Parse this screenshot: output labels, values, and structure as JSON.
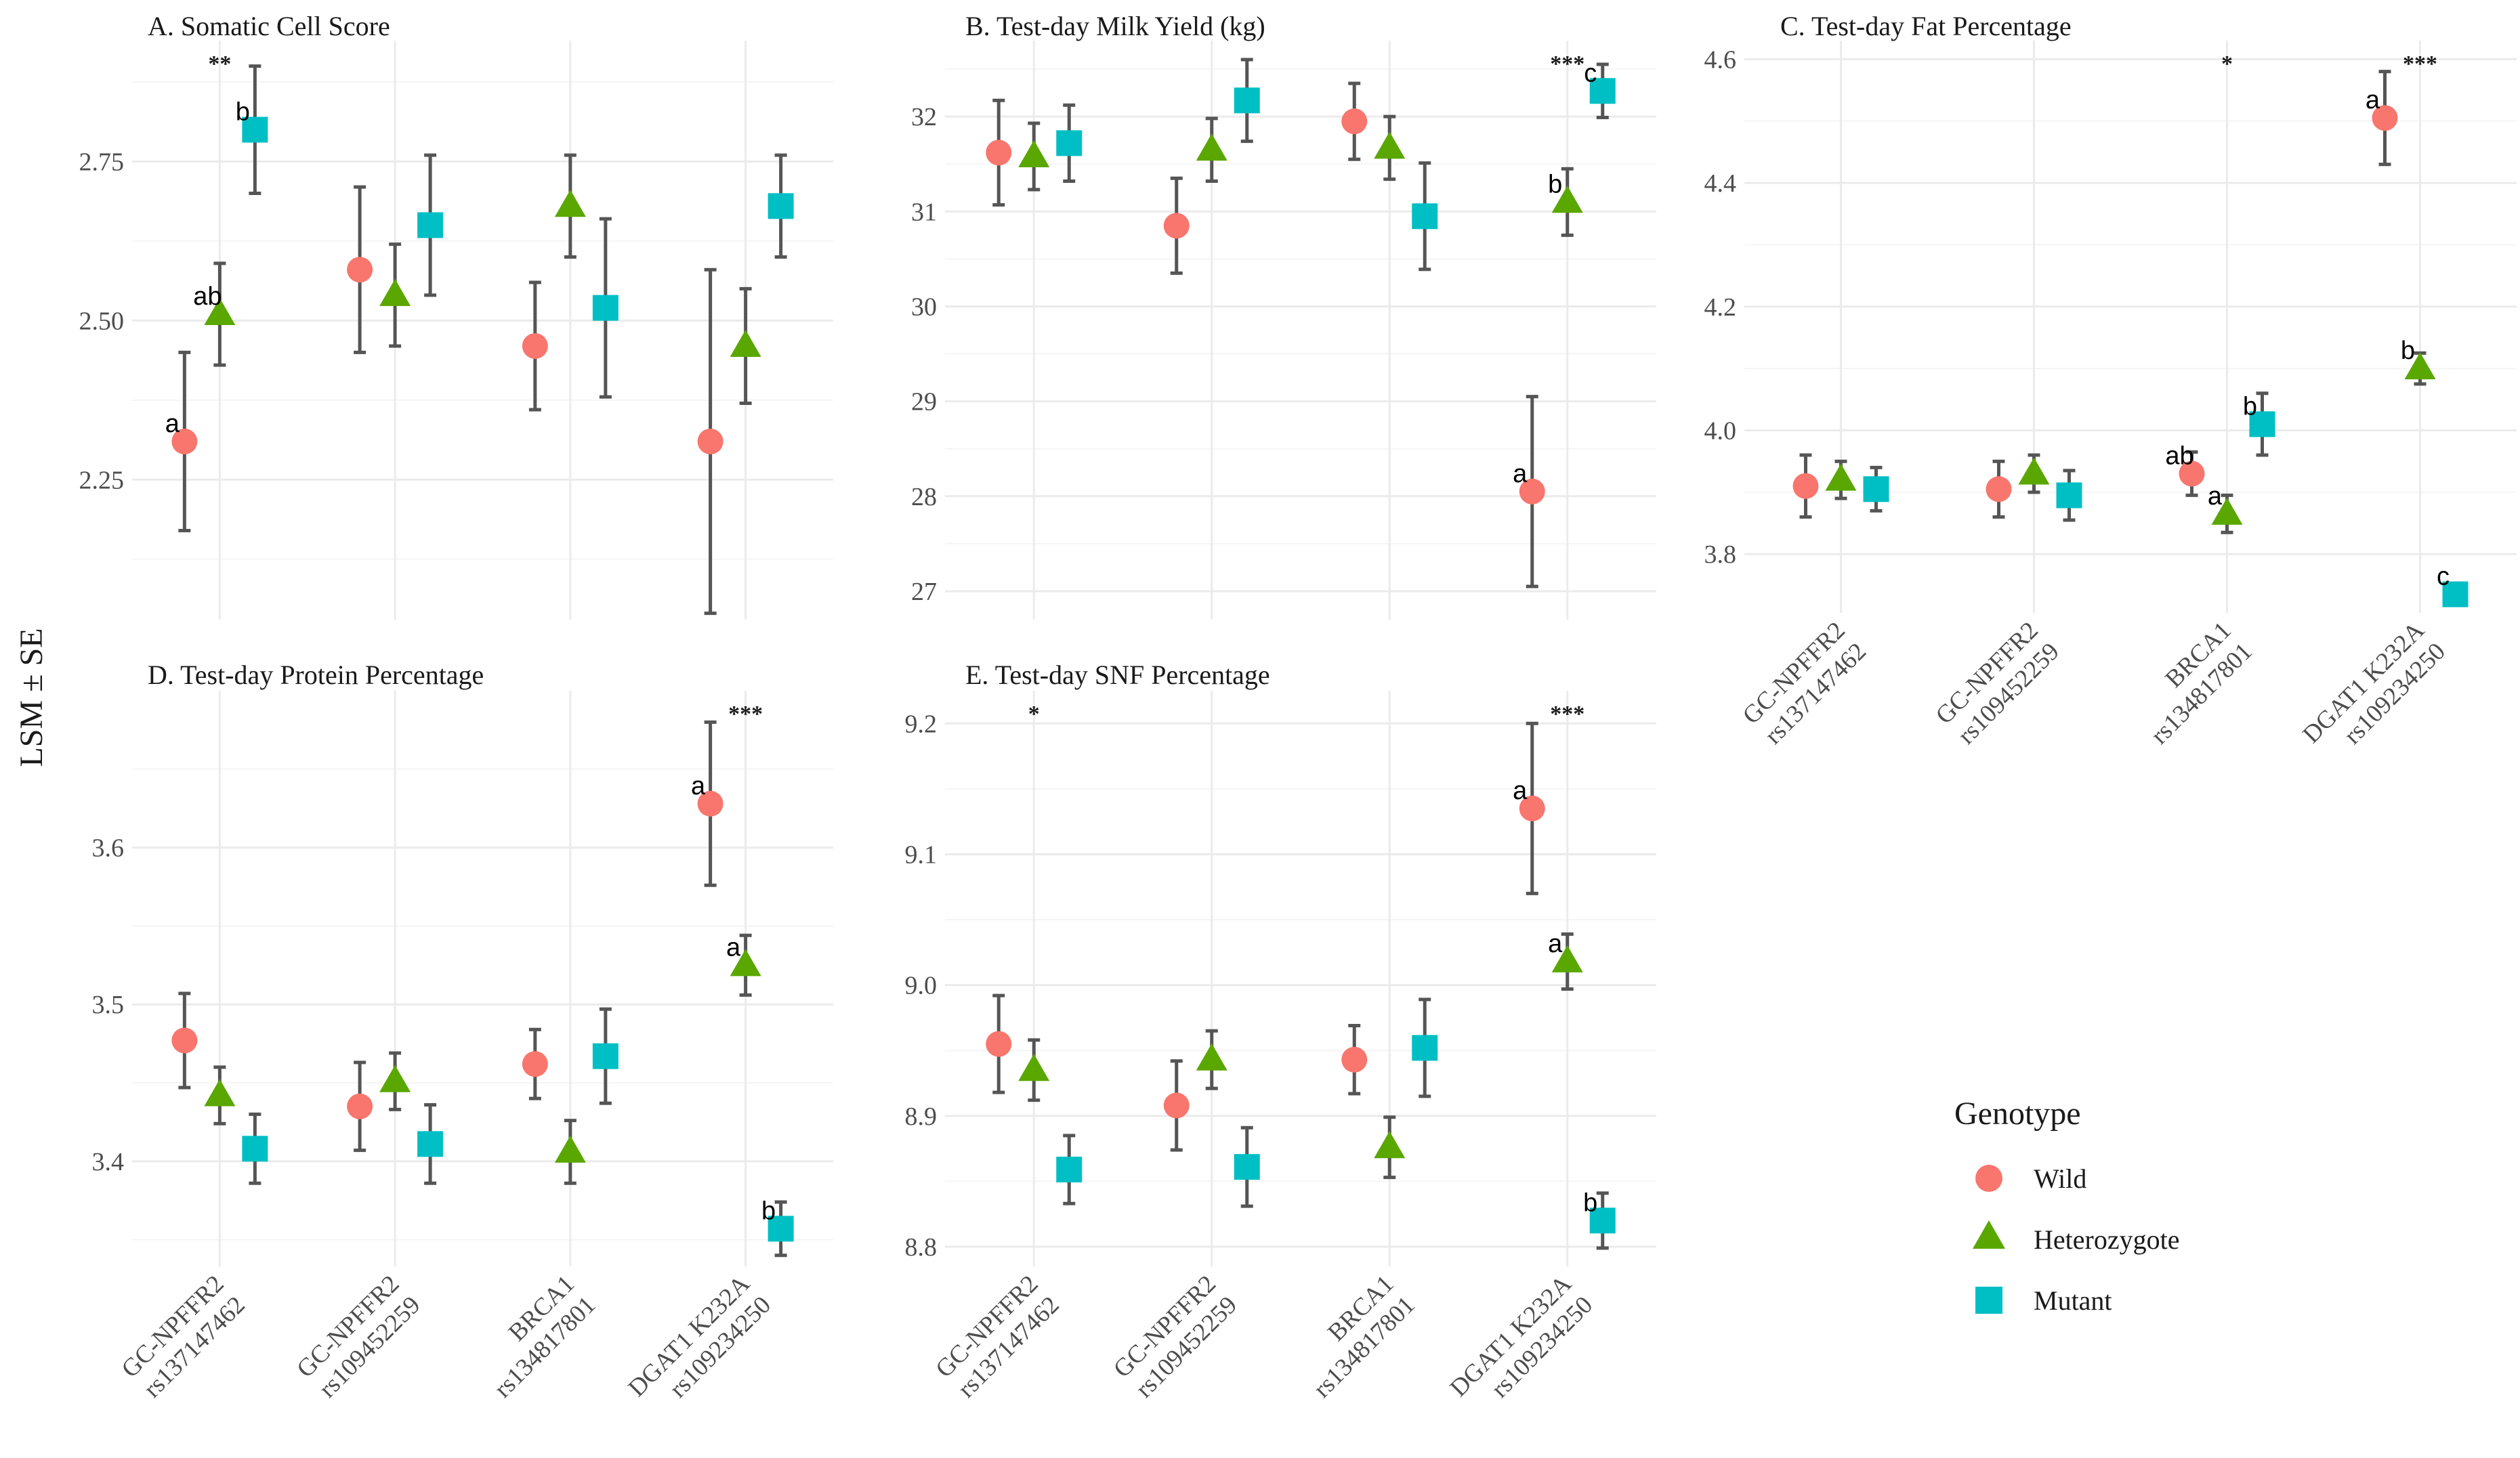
{
  "y_axis_label": "LSM ± SE",
  "legend": {
    "title": "Genotype",
    "items": [
      {
        "label": "Wild",
        "shape": "circle",
        "color": "#F8766D"
      },
      {
        "label": "Heterozygote",
        "shape": "triangle",
        "color": "#5AA700"
      },
      {
        "label": "Mutant",
        "shape": "square",
        "color": "#00BFC4"
      }
    ]
  },
  "chart_data": [
    {
      "type": "scatter",
      "title": "A. Somatic Cell Score",
      "categories": [
        [
          "GC-NPFFR2",
          "rs137147462"
        ],
        [
          "GC-NPFFR2",
          "rs109452259"
        ],
        [
          "BRCA1",
          "rs134817801"
        ],
        [
          "DGAT1 K232A",
          "rs109234250"
        ]
      ],
      "ylim": [
        2.03,
        2.94
      ],
      "yticks": [
        "2.25",
        "2.50",
        "2.75"
      ],
      "series": [
        {
          "name": "Wild",
          "values": [
            2.31,
            2.58,
            2.46,
            2.31
          ],
          "se": [
            0.14,
            0.13,
            0.1,
            0.27
          ],
          "letters": [
            "a",
            "",
            "",
            ""
          ]
        },
        {
          "name": "Heterozygote",
          "values": [
            2.51,
            2.54,
            2.68,
            2.46
          ],
          "se": [
            0.08,
            0.08,
            0.08,
            0.09
          ],
          "letters": [
            "ab",
            "",
            "",
            ""
          ]
        },
        {
          "name": "Mutant",
          "values": [
            2.8,
            2.65,
            2.52,
            2.68
          ],
          "se": [
            0.1,
            0.11,
            0.14,
            0.08
          ],
          "letters": [
            "b",
            "",
            "",
            ""
          ]
        }
      ],
      "significance": [
        "**",
        "",
        "",
        ""
      ]
    },
    {
      "type": "scatter",
      "title": "B. Test-day Milk Yield (kg)",
      "categories": [
        [
          "GC-NPFFR2",
          "rs137147462"
        ],
        [
          "GC-NPFFR2",
          "rs109452259"
        ],
        [
          "BRCA1",
          "rs134817801"
        ],
        [
          "DGAT1 K232A",
          "rs109234250"
        ]
      ],
      "ylim": [
        26.7,
        32.8
      ],
      "yticks": [
        "27",
        "28",
        "29",
        "30",
        "31",
        "32"
      ],
      "series": [
        {
          "name": "Wild",
          "values": [
            31.62,
            30.85,
            31.95,
            28.05
          ],
          "se": [
            0.55,
            0.5,
            0.4,
            1.0
          ],
          "letters": [
            "",
            "",
            "",
            "a"
          ]
        },
        {
          "name": "Heterozygote",
          "values": [
            31.58,
            31.65,
            31.67,
            31.1
          ],
          "se": [
            0.35,
            0.33,
            0.33,
            0.35
          ],
          "letters": [
            "",
            "",
            "",
            "b"
          ]
        },
        {
          "name": "Mutant",
          "values": [
            31.72,
            32.17,
            30.95,
            32.27
          ],
          "se": [
            0.4,
            0.43,
            0.56,
            0.28
          ],
          "letters": [
            "",
            "",
            "",
            "c"
          ]
        }
      ],
      "significance": [
        "",
        "",
        "",
        "***"
      ]
    },
    {
      "type": "scatter",
      "title": "C. Test-day Fat Percentage",
      "categories": [
        [
          "GC-NPFFR2",
          "rs137147462"
        ],
        [
          "GC-NPFFR2",
          "rs109452259"
        ],
        [
          "BRCA1",
          "rs134817801"
        ],
        [
          "DGAT1 K232A",
          "rs109234250"
        ]
      ],
      "ylim": [
        3.705,
        4.63
      ],
      "yticks": [
        "3.8",
        "4.0",
        "4.2",
        "4.4",
        "4.6"
      ],
      "series": [
        {
          "name": "Wild",
          "values": [
            3.91,
            3.905,
            3.93,
            4.505
          ],
          "se": [
            0.05,
            0.045,
            0.035,
            0.075
          ],
          "letters": [
            "",
            "",
            "ab",
            "a"
          ]
        },
        {
          "name": "Heterozygote",
          "values": [
            3.92,
            3.93,
            3.865,
            4.1
          ],
          "se": [
            0.03,
            0.03,
            0.03,
            0.025
          ],
          "letters": [
            "",
            "",
            "a",
            "b"
          ]
        },
        {
          "name": "Mutant",
          "values": [
            3.905,
            3.895,
            4.01,
            3.735
          ],
          "se": [
            0.035,
            0.04,
            0.05,
            0.01
          ],
          "letters": [
            "",
            "",
            "b",
            "c"
          ]
        }
      ],
      "significance": [
        "",
        "",
        "*",
        "***"
      ]
    },
    {
      "type": "scatter",
      "title": "D. Test-day Protein Percentage",
      "categories": [
        [
          "GC-NPFFR2",
          "rs137147462"
        ],
        [
          "GC-NPFFR2",
          "rs109452259"
        ],
        [
          "BRCA1",
          "rs134817801"
        ],
        [
          "DGAT1 K232A",
          "rs109234250"
        ]
      ],
      "ylim": [
        3.333,
        3.7
      ],
      "yticks": [
        "3.4",
        "3.5",
        "3.6"
      ],
      "series": [
        {
          "name": "Wild",
          "values": [
            3.477,
            3.435,
            3.462,
            3.628
          ],
          "se": [
            0.03,
            0.028,
            0.022,
            0.052
          ],
          "letters": [
            "",
            "",
            "",
            "a"
          ]
        },
        {
          "name": "Heterozygote",
          "values": [
            3.442,
            3.451,
            3.406,
            3.525
          ],
          "se": [
            0.018,
            0.018,
            0.02,
            0.019
          ],
          "letters": [
            "",
            "",
            "",
            "a"
          ]
        },
        {
          "name": "Mutant",
          "values": [
            3.408,
            3.411,
            3.467,
            3.357
          ],
          "se": [
            0.022,
            0.025,
            0.03,
            0.017
          ],
          "letters": [
            "",
            "",
            "",
            "b"
          ]
        }
      ],
      "significance": [
        "",
        "",
        "",
        "***"
      ]
    },
    {
      "type": "scatter",
      "title": "E. Test-day SNF Percentage",
      "categories": [
        [
          "GC-NPFFR2",
          "rs137147462"
        ],
        [
          "GC-NPFFR2",
          "rs109452259"
        ],
        [
          "BRCA1",
          "rs134817801"
        ],
        [
          "DGAT1 K232A",
          "rs109234250"
        ]
      ],
      "ylim": [
        8.785,
        9.225
      ],
      "yticks": [
        "8.8",
        "8.9",
        "9.0",
        "9.1",
        "9.2"
      ],
      "series": [
        {
          "name": "Wild",
          "values": [
            8.955,
            8.908,
            8.943,
            9.135
          ],
          "se": [
            0.037,
            0.034,
            0.026,
            0.065
          ],
          "letters": [
            "",
            "",
            "",
            "a"
          ]
        },
        {
          "name": "Heterozygote",
          "values": [
            8.935,
            8.943,
            8.876,
            9.018
          ],
          "se": [
            0.023,
            0.022,
            0.023,
            0.021
          ],
          "letters": [
            "",
            "",
            "",
            "a"
          ]
        },
        {
          "name": "Mutant",
          "values": [
            8.859,
            8.861,
            8.952,
            8.82
          ],
          "se": [
            0.026,
            0.03,
            0.037,
            0.021
          ],
          "letters": [
            "",
            "",
            "",
            "b"
          ]
        }
      ],
      "significance": [
        "*",
        "",
        "",
        "***"
      ]
    }
  ]
}
